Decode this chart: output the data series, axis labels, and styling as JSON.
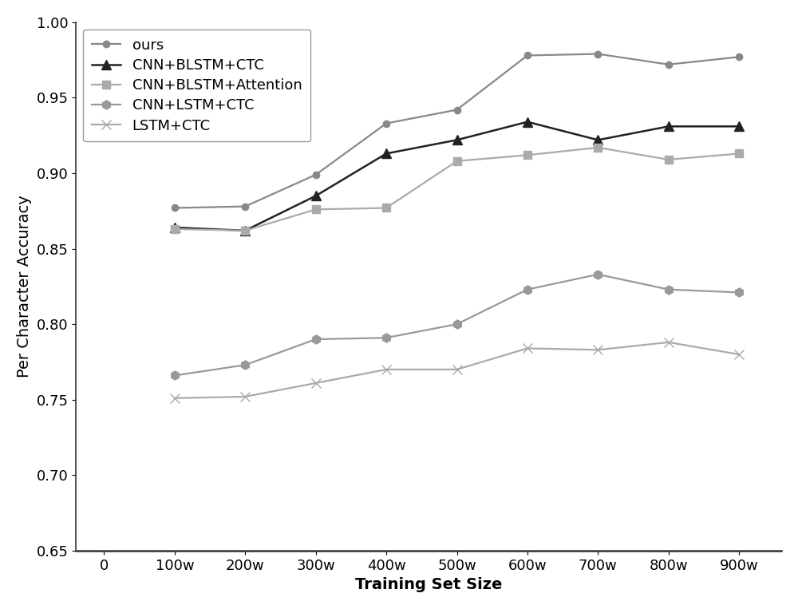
{
  "x_labels": [
    "0",
    "100w",
    "200w",
    "300w",
    "400w",
    "500w",
    "600w",
    "700w",
    "800w",
    "900w"
  ],
  "x_values": [
    0,
    1,
    2,
    3,
    4,
    5,
    6,
    7,
    8,
    9
  ],
  "series": [
    {
      "label": "ours",
      "line_color": "#888888",
      "marker_color": "#888888",
      "marker": "o",
      "markersize": 6,
      "linewidth": 1.6,
      "linestyle": "-",
      "values": [
        null,
        0.877,
        0.878,
        0.899,
        0.933,
        0.942,
        0.978,
        0.979,
        0.972,
        0.977
      ]
    },
    {
      "label": "CNN+BLSTM+CTC",
      "line_color": "#222222",
      "marker_color": "#222222",
      "marker": "^",
      "markersize": 9,
      "linewidth": 1.8,
      "linestyle": "-",
      "values": [
        null,
        0.864,
        0.862,
        0.885,
        0.913,
        0.922,
        0.934,
        0.922,
        0.931,
        0.931
      ]
    },
    {
      "label": "CNN+BLSTM+Attention",
      "line_color": "#aaaaaa",
      "marker_color": "#aaaaaa",
      "marker": "s",
      "markersize": 7,
      "linewidth": 1.6,
      "linestyle": "-",
      "values": [
        null,
        0.863,
        0.862,
        0.876,
        0.877,
        0.908,
        0.912,
        0.917,
        0.909,
        0.913
      ]
    },
    {
      "label": "CNN+LSTM+CTC",
      "line_color": "#999999",
      "marker_color": "#999999",
      "marker": "h",
      "markersize": 8,
      "linewidth": 1.6,
      "linestyle": "-",
      "values": [
        null,
        0.766,
        0.773,
        0.79,
        0.791,
        0.8,
        0.823,
        0.833,
        0.823,
        0.821
      ]
    },
    {
      "label": "LSTM+CTC",
      "line_color": "#aaaaaa",
      "marker_color": "#aaaaaa",
      "marker": "x",
      "markersize": 8,
      "linewidth": 1.6,
      "linestyle": "-",
      "values": [
        null,
        0.751,
        0.752,
        0.761,
        0.77,
        0.77,
        0.784,
        0.783,
        0.788,
        0.78
      ]
    }
  ],
  "xlabel": "Training Set Size",
  "ylabel": "Per Character Accuracy",
  "ylim": [
    0.65,
    1.0
  ],
  "yticks": [
    0.65,
    0.7,
    0.75,
    0.8,
    0.85,
    0.9,
    0.95,
    1.0
  ],
  "xlim_left": -0.4,
  "xlim_right": 9.6,
  "figsize": [
    10.0,
    7.63
  ],
  "dpi": 100,
  "background_color": "#ffffff",
  "tick_fontsize": 13,
  "label_fontsize": 14
}
